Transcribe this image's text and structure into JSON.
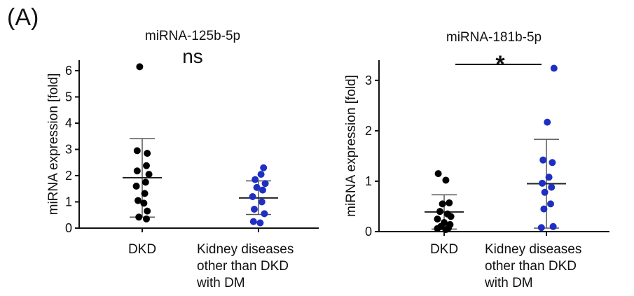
{
  "panel_label": "(A)",
  "chart_data": [
    {
      "type": "scatter",
      "title": "miRNA-125b-5p",
      "ylabel": "miRNA expression [fold]",
      "ylim": [
        0,
        6.4
      ],
      "yticks": [
        0,
        1,
        2,
        3,
        4,
        5,
        6
      ],
      "significance": "ns",
      "categories": [
        {
          "lines": [
            "DKD"
          ]
        },
        {
          "lines": [
            "Kidney diseases",
            "other than DKD",
            "with DM"
          ]
        }
      ],
      "series": [
        {
          "color": "#000000",
          "mean": 1.92,
          "sd_low": 0.42,
          "sd_high": 3.41,
          "points": [
            {
              "x": -0.03,
              "y": 6.15
            },
            {
              "x": -0.06,
              "y": 2.95
            },
            {
              "x": 0.06,
              "y": 2.85
            },
            {
              "x": 0.05,
              "y": 2.38
            },
            {
              "x": -0.06,
              "y": 2.18
            },
            {
              "x": 0.08,
              "y": 2.05
            },
            {
              "x": 0.04,
              "y": 1.75
            },
            {
              "x": -0.07,
              "y": 1.6
            },
            {
              "x": 0.03,
              "y": 1.32
            },
            {
              "x": -0.05,
              "y": 1.05
            },
            {
              "x": 0.02,
              "y": 0.95
            },
            {
              "x": 0.06,
              "y": 0.65
            },
            {
              "x": -0.04,
              "y": 0.42
            },
            {
              "x": 0.05,
              "y": 0.35
            }
          ]
        },
        {
          "color": "#1f2fc2",
          "mean": 1.15,
          "sd_low": 0.52,
          "sd_high": 1.8,
          "points": [
            {
              "x": 0.06,
              "y": 2.3
            },
            {
              "x": 0.03,
              "y": 2.05
            },
            {
              "x": -0.04,
              "y": 1.85
            },
            {
              "x": 0.08,
              "y": 1.7
            },
            {
              "x": -0.02,
              "y": 1.55
            },
            {
              "x": 0.05,
              "y": 1.45
            },
            {
              "x": -0.07,
              "y": 1.2
            },
            {
              "x": 0.04,
              "y": 1.0
            },
            {
              "x": -0.05,
              "y": 0.72
            },
            {
              "x": 0.07,
              "y": 0.55
            },
            {
              "x": -0.06,
              "y": 0.25
            },
            {
              "x": 0.02,
              "y": 0.2
            }
          ]
        }
      ]
    },
    {
      "type": "scatter",
      "title": "miRNA-181b-5p",
      "ylabel": "miRNA expression [fold]",
      "ylim": [
        0,
        3.4
      ],
      "yticks": [
        0,
        1,
        2,
        3
      ],
      "significance": "*",
      "categories": [
        {
          "lines": [
            "DKD"
          ]
        },
        {
          "lines": [
            "Kidney diseases",
            "other than DKD",
            "with DM"
          ]
        }
      ],
      "series": [
        {
          "color": "#000000",
          "mean": 0.39,
          "sd_low": 0.05,
          "sd_high": 0.73,
          "points": [
            {
              "x": -0.07,
              "y": 1.15
            },
            {
              "x": 0.02,
              "y": 1.02
            },
            {
              "x": -0.02,
              "y": 0.55
            },
            {
              "x": 0.06,
              "y": 0.57
            },
            {
              "x": -0.05,
              "y": 0.4
            },
            {
              "x": 0.04,
              "y": 0.35
            },
            {
              "x": 0.08,
              "y": 0.3
            },
            {
              "x": -0.08,
              "y": 0.25
            },
            {
              "x": 0.0,
              "y": 0.18
            },
            {
              "x": 0.07,
              "y": 0.14
            },
            {
              "x": -0.04,
              "y": 0.1
            },
            {
              "x": 0.05,
              "y": 0.07
            },
            {
              "x": -0.08,
              "y": 0.06
            },
            {
              "x": 0.02,
              "y": 0.04
            }
          ]
        },
        {
          "color": "#1f2fc2",
          "mean": 0.95,
          "sd_low": 0.07,
          "sd_high": 1.83,
          "points": [
            {
              "x": 0.09,
              "y": 3.24
            },
            {
              "x": 0.01,
              "y": 2.17
            },
            {
              "x": 0.07,
              "y": 1.37
            },
            {
              "x": -0.04,
              "y": 1.42
            },
            {
              "x": 0.03,
              "y": 1.08
            },
            {
              "x": -0.05,
              "y": 0.96
            },
            {
              "x": 0.06,
              "y": 0.88
            },
            {
              "x": -0.02,
              "y": 0.78
            },
            {
              "x": 0.05,
              "y": 0.55
            },
            {
              "x": -0.03,
              "y": 0.45
            },
            {
              "x": 0.08,
              "y": 0.1
            },
            {
              "x": -0.06,
              "y": 0.08
            }
          ]
        }
      ]
    }
  ]
}
